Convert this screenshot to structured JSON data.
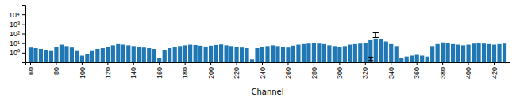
{
  "chart_data": {
    "type": "bar",
    "xlabel": "Channel",
    "categories": [
      "60",
      null,
      null,
      null,
      null,
      "80",
      null,
      null,
      null,
      null,
      "100",
      null,
      null,
      null,
      null,
      "120",
      null,
      null,
      null,
      null,
      "140",
      null,
      null,
      null,
      null,
      "160",
      null,
      null,
      null,
      null,
      "180",
      null,
      null,
      null,
      null,
      "200",
      null,
      null,
      null,
      null,
      "220",
      null,
      null,
      null,
      null,
      "240",
      null,
      null,
      null,
      null,
      "260",
      null,
      null,
      null,
      null,
      "280",
      null,
      null,
      null,
      null,
      "300",
      null,
      null,
      null,
      null,
      "320",
      null,
      null,
      null,
      null,
      "340",
      null,
      null,
      null,
      null,
      "360",
      null,
      null,
      null,
      null,
      "380",
      null,
      null,
      null,
      null,
      "400",
      null,
      null,
      null,
      null,
      "420",
      null,
      null
    ],
    "values": [
      3.5,
      3.0,
      2.5,
      2.0,
      1.5,
      4.0,
      7.0,
      5.0,
      3.5,
      1.5,
      0.5,
      0.8,
      1.5,
      2.5,
      3.0,
      4.0,
      6.0,
      8.0,
      7.0,
      6.0,
      5.0,
      4.0,
      3.5,
      3.0,
      2.5,
      0.3,
      2.0,
      3.0,
      4.0,
      5.0,
      6.0,
      7.0,
      6.5,
      5.5,
      4.5,
      5.5,
      6.5,
      7.5,
      6.0,
      5.0,
      4.0,
      3.5,
      3.0,
      0.2,
      3.0,
      4.0,
      5.0,
      6.0,
      5.0,
      4.0,
      3.5,
      5.5,
      7.0,
      8.0,
      9.0,
      10.0,
      9.0,
      8.0,
      6.0,
      5.0,
      4.0,
      5.0,
      7.0,
      8.0,
      9.0,
      11.0,
      20.0,
      30.0,
      25.0,
      15.0,
      8.0,
      5.0,
      0.3,
      0.4,
      0.5,
      0.6,
      0.5,
      0.4,
      5.0,
      8.0,
      12.0,
      10.0,
      8.0,
      7.0,
      6.0,
      7.0,
      9.0,
      10.0,
      9.0,
      8.0,
      7.0,
      8.0,
      9.0
    ],
    "log": "y",
    "ylim": [
      0.1,
      100000
    ],
    "yticks": [
      {
        "value": 1,
        "label": "10⁰"
      },
      {
        "value": 10,
        "label": "10¹"
      },
      {
        "value": 100,
        "label": "10²"
      },
      {
        "value": 1000,
        "label": "10³"
      },
      {
        "value": 10000,
        "label": "10⁴"
      }
    ],
    "error_bars": [
      {
        "position": 67,
        "value": 75,
        "error_low": 36,
        "error_high": 45
      },
      {
        "position": 66,
        "value": 0.25,
        "error_low": 0.1,
        "error_high": 0.1
      }
    ],
    "grid": false
  }
}
